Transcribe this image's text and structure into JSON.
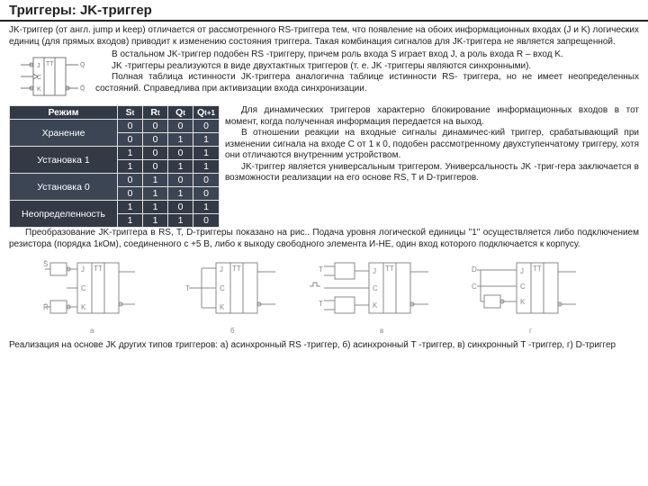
{
  "title": "Триггеры: JK-триггер",
  "intro1": "JK-триггер (от англ. jump и keep) отличается от рассмотренного RS-триггера тем, что появление на обоих информационных входах (J и K) логических единиц (для прямых входов) приводит к изменению состояния триггера. Такая комбинация сигналов для JK-триггера не является запрещенной.",
  "r1p1": "В остальном JK-триггер подобен RS -триггеру, причем роль входа S играет вход J, а роль входа R – вход K.",
  "r1p2": "JK -триггеры реализуются в виде двухтактных триггеров (т. е. JK -триггеры являются синхронными).",
  "r1p3": "Полная таблица истинности JK-триггера аналогична таблице истинности RS- триггера, но не имеет неопределенных состояний. Справедлива при активизации входа синхронизации.",
  "r2p1": "Для динамических триггеров характерно блокирование информационных входов в тот момент, когда полученная информация передается на выход.",
  "r2p2": "В отношении реакции на входные сигналы динамичес-кий триггер, срабатывающий при изменении сигнала на входе С от 1 к 0, подобен рассмотренному двухступенчатому триггеру, хотя они отличаются внутренним устройством.",
  "r2p3": "JK-триггер является универсальным триггером. Универсальность JK -триг-гера заключается в возможности реализации на его основе RS, T и D-триггеров.",
  "after1": "Преобразование JK-триггера в RS, T, D-триггеры показано на рис.. Подача уровня логической единицы \"1\" осуществляется либо подключением резистора (порядка 1кОм), соединенного с +5 В, либо к выходу свободного элемента И-НЕ, один вход которого подключается к корпусу.",
  "caption": "Реализация на основе JK других типов триггеров: а) асинхронный RS -триггер, б) асинхронный T -триггер, в) синхронный T -триггер, г) D-триггер",
  "truth_table": {
    "headers": [
      "Режим",
      "S",
      "R",
      "Q",
      "Q"
    ],
    "header_sub": [
      "",
      "t",
      "t",
      "t",
      "t+1"
    ],
    "rows": [
      {
        "mode": "Хранение",
        "S": "0",
        "R": "0",
        "Q": "0",
        "Q1": "0",
        "span": 2
      },
      {
        "mode": "",
        "S": "0",
        "R": "0",
        "Q": "1",
        "Q1": "1",
        "span": 0
      },
      {
        "mode": "Установка 1",
        "S": "1",
        "R": "0",
        "Q": "0",
        "Q1": "1",
        "span": 2
      },
      {
        "mode": "",
        "S": "1",
        "R": "0",
        "Q": "1",
        "Q1": "1",
        "span": 0
      },
      {
        "mode": "Установка 0",
        "S": "0",
        "R": "1",
        "Q": "0",
        "Q1": "0",
        "span": 2
      },
      {
        "mode": "",
        "S": "0",
        "R": "1",
        "Q": "1",
        "Q1": "0",
        "span": 0
      },
      {
        "mode": "Неопределенность",
        "S": "1",
        "R": "1",
        "Q": "0",
        "Q1": "1",
        "span": 2
      },
      {
        "mode": "",
        "S": "1",
        "R": "1",
        "Q": "1",
        "Q1": "0",
        "span": 0
      }
    ],
    "colors": {
      "header_bg": "#333a45",
      "row_bg": "#3c4554",
      "text": "#ffffff",
      "border": "#e0e0e0"
    }
  },
  "row_alt": [
    "#333a45",
    "#3c4554"
  ],
  "symbol": {
    "labels": [
      "J",
      "C",
      "K",
      "TT",
      "Q",
      "Q̄"
    ],
    "stroke": "#777"
  },
  "diagram_labels": {
    "a": {
      "S": "S̄",
      "R": "R̄",
      "J": "J",
      "C": "C",
      "K": "K",
      "TT": "TT"
    },
    "b": {
      "T": "T",
      "J": "J",
      "C": "C",
      "K": "K",
      "TT": "TT"
    },
    "v": {
      "T": "T",
      "C": "C",
      "J": "J",
      "K": "K",
      "TT": "TT"
    },
    "g": {
      "D": "D",
      "C": "C",
      "J": "J",
      "K": "K",
      "TT": "TT"
    },
    "sub": [
      "а",
      "б",
      "в",
      "г"
    ]
  }
}
